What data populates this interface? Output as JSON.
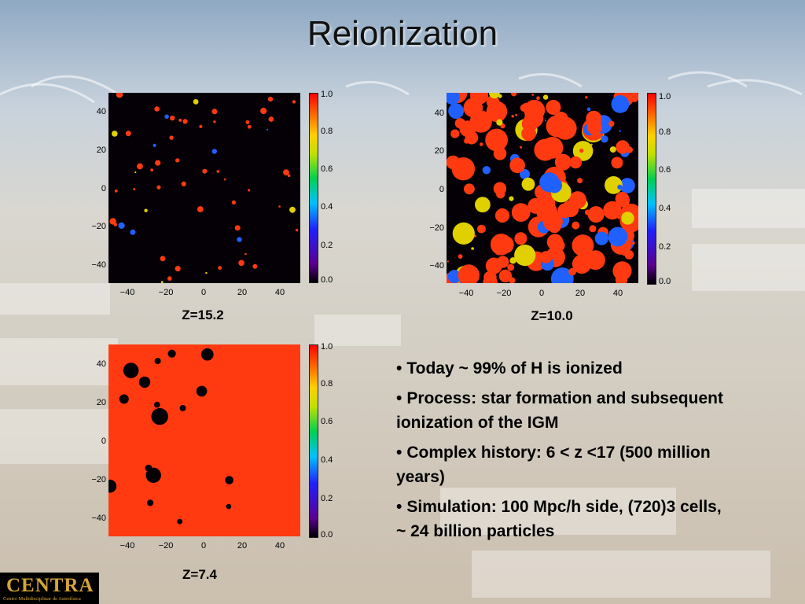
{
  "title": "Reionization",
  "panels": [
    {
      "id": "z152",
      "label": "Z=15.2",
      "fill": 0.06,
      "y_ticks": [
        "40",
        "20",
        "0",
        "−20",
        "−40"
      ],
      "x_ticks": [
        "−40",
        "−20",
        "0",
        "20",
        "40"
      ],
      "colorbar_ticks": [
        "1.0",
        "0.8",
        "0.6",
        "0.4",
        "0.2",
        "0.0"
      ]
    },
    {
      "id": "z100",
      "label": "Z=10.0",
      "fill": 0.45,
      "y_ticks": [
        "40",
        "20",
        "0",
        "−20",
        "−40"
      ],
      "x_ticks": [
        "−40",
        "−20",
        "0",
        "20",
        "40"
      ],
      "colorbar_ticks": [
        "1.0",
        "0.8",
        "0.6",
        "0.4",
        "0.2",
        "0.0"
      ]
    },
    {
      "id": "z74",
      "label": "Z=7.4",
      "fill": 0.88,
      "y_ticks": [
        "40",
        "20",
        "0",
        "−20",
        "−40"
      ],
      "x_ticks": [
        "−40",
        "−20",
        "0",
        "20",
        "40"
      ],
      "colorbar_ticks": [
        "1.0",
        "0.8",
        "0.6",
        "0.4",
        "0.2",
        "0.0"
      ]
    }
  ],
  "bullets": [
    "Today ~ 99% of H is ionized",
    "Process: star formation and subsequent ionization of the IGM",
    "Complex history: 6 < z <17 (500 million years)",
    "Simulation: 100 Mpc/h side, (720)3 cells, ~ 24 billion particles"
  ],
  "bullet_marker": "•",
  "logo": {
    "name": "CENTRA",
    "subtitle": "Centro Multidisciplinar de Astrofísica"
  },
  "colors": {
    "ionized": "#ff3a10",
    "neutral": "#050005",
    "title": "#111111"
  }
}
